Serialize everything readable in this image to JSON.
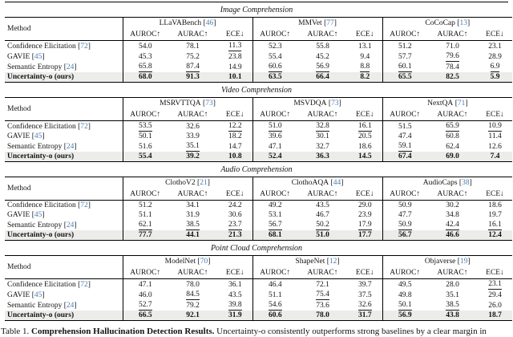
{
  "colors": {
    "citation": "#4a7db6",
    "highlight_row": "#ececea"
  },
  "table": {
    "method_header": "Method",
    "metric_headers": [
      "AUROC↑",
      "AURAC↑",
      "ECE↓"
    ],
    "sections": [
      {
        "title": "Image Comprehension",
        "benchmarks": [
          {
            "name": "LLaVABench",
            "cite": "46"
          },
          {
            "name": "MMVet",
            "cite": "77"
          },
          {
            "name": "CoCoCap",
            "cite": "13"
          }
        ],
        "rows": [
          {
            "method": "Confidence Elicitation",
            "cite": "72",
            "bold": false,
            "values": [
              "54.0",
              "78.1",
              "11.3",
              "52.3",
              "55.8",
              "13.1",
              "51.2",
              "71.0",
              "23.1"
            ],
            "underlined": [
              2
            ]
          },
          {
            "method": "GAVIE",
            "cite": "45",
            "bold": false,
            "values": [
              "45.3",
              "75.2",
              "23.8",
              "55.4",
              "45.2",
              "9.4",
              "57.7",
              "79.6",
              "28.9"
            ],
            "underlined": [
              7
            ]
          },
          {
            "method": "Semantic Entropy",
            "cite": "24",
            "bold": false,
            "values": [
              "65.8",
              "87.4",
              "14.9",
              "60.6",
              "56.9",
              "8.8",
              "60.1",
              "78.4",
              "6.9"
            ],
            "underlined": [
              0,
              1,
              3,
              4,
              5,
              6,
              8
            ]
          },
          {
            "method": "Uncertainty-o (ours)",
            "cite": null,
            "bold": true,
            "values": [
              "68.0",
              "91.3",
              "10.1",
              "63.5",
              "66.4",
              "8.2",
              "65.5",
              "82.5",
              "5.9"
            ],
            "underlined": []
          }
        ]
      },
      {
        "title": "Video Comprehension",
        "benchmarks": [
          {
            "name": "MSRVTTQA",
            "cite": "73"
          },
          {
            "name": "MSVDQA",
            "cite": "73"
          },
          {
            "name": "NextQA",
            "cite": "71"
          }
        ],
        "rows": [
          {
            "method": "Confidence Elicitation",
            "cite": "72",
            "bold": false,
            "values": [
              "53.5",
              "32.6",
              "12.2",
              "51.0",
              "32.8",
              "16.1",
              "51.5",
              "65.9",
              "10.9"
            ],
            "underlined": [
              0,
              2,
              3,
              4,
              5,
              7,
              8
            ]
          },
          {
            "method": "GAVIE",
            "cite": "45",
            "bold": false,
            "values": [
              "50.1",
              "33.9",
              "18.2",
              "39.6",
              "30.1",
              "20.5",
              "47.4",
              "60.8",
              "11.4"
            ],
            "underlined": []
          },
          {
            "method": "Semantic Entropy",
            "cite": "24",
            "bold": false,
            "values": [
              "51.6",
              "35.1",
              "14.7",
              "47.1",
              "32.7",
              "18.6",
              "59.1",
              "62.4",
              "12.6"
            ],
            "underlined": [
              1,
              6
            ]
          },
          {
            "method": "Uncertainty-o (ours)",
            "cite": null,
            "bold": true,
            "values": [
              "55.4",
              "39.2",
              "10.8",
              "52.4",
              "36.3",
              "14.5",
              "67.4",
              "69.0",
              "7.4"
            ],
            "underlined": []
          }
        ]
      },
      {
        "title": "Audio Comprehension",
        "benchmarks": [
          {
            "name": "ClothoV2",
            "cite": "21"
          },
          {
            "name": "ClothoAQA",
            "cite": "44"
          },
          {
            "name": "AudioCaps",
            "cite": "38"
          }
        ],
        "rows": [
          {
            "method": "Confidence Elicitation",
            "cite": "72",
            "bold": false,
            "values": [
              "51.2",
              "34.1",
              "24.2",
              "49.2",
              "43.5",
              "29.0",
              "50.9",
              "30.2",
              "18.6"
            ],
            "underlined": []
          },
          {
            "method": "GAVIE",
            "cite": "45",
            "bold": false,
            "values": [
              "51.1",
              "31.9",
              "30.6",
              "53.1",
              "46.7",
              "23.9",
              "47.7",
              "34.8",
              "19.7"
            ],
            "underlined": []
          },
          {
            "method": "Semantic Entropy",
            "cite": "24",
            "bold": false,
            "values": [
              "62.1",
              "38.5",
              "23.7",
              "56.7",
              "50.2",
              "17.9",
              "50.9",
              "42.4",
              "16.1"
            ],
            "underlined": [
              0,
              1,
              2,
              3,
              4,
              5,
              6,
              7,
              8
            ]
          },
          {
            "method": "Uncertainty-o (ours)",
            "cite": null,
            "bold": true,
            "values": [
              "77.7",
              "44.1",
              "21.3",
              "68.1",
              "51.0",
              "17.7",
              "56.7",
              "46.6",
              "12.4"
            ],
            "underlined": []
          }
        ]
      },
      {
        "title": "Point Cloud Comprehension",
        "benchmarks": [
          {
            "name": "ModelNet",
            "cite": "70"
          },
          {
            "name": "ShapeNet",
            "cite": "12"
          },
          {
            "name": "Objaverse",
            "cite": "19"
          }
        ],
        "rows": [
          {
            "method": "Confidence Elicitation",
            "cite": "72",
            "bold": false,
            "values": [
              "47.1",
              "78.0",
              "36.1",
              "46.4",
              "72.1",
              "39.7",
              "49.5",
              "28.0",
              "23.1"
            ],
            "underlined": [
              8
            ]
          },
          {
            "method": "GAVIE",
            "cite": "45",
            "bold": false,
            "values": [
              "46.0",
              "84.5",
              "43.5",
              "51.1",
              "75.4",
              "37.5",
              "49.8",
              "35.1",
              "29.4"
            ],
            "underlined": [
              1,
              4
            ]
          },
          {
            "method": "Semantic Entropy",
            "cite": "24",
            "bold": false,
            "values": [
              "52.7",
              "79.2",
              "39.8",
              "54.6",
              "73.6",
              "32.6",
              "50.1",
              "38.5",
              "26.0"
            ],
            "underlined": [
              0,
              2,
              3,
              5,
              6,
              7
            ]
          },
          {
            "method": "Uncertainty-o (ours)",
            "cite": null,
            "bold": true,
            "values": [
              "66.5",
              "92.1",
              "31.9",
              "60.6",
              "78.0",
              "31.7",
              "56.9",
              "43.8",
              "18.7"
            ],
            "underlined": []
          }
        ]
      }
    ]
  },
  "caption": {
    "label": "Table 1.",
    "bold_text": "Comprehension Hallucination Detection Results.",
    "text": "Uncertainty-o consistently outperforms strong baselines by a clear margin in"
  }
}
